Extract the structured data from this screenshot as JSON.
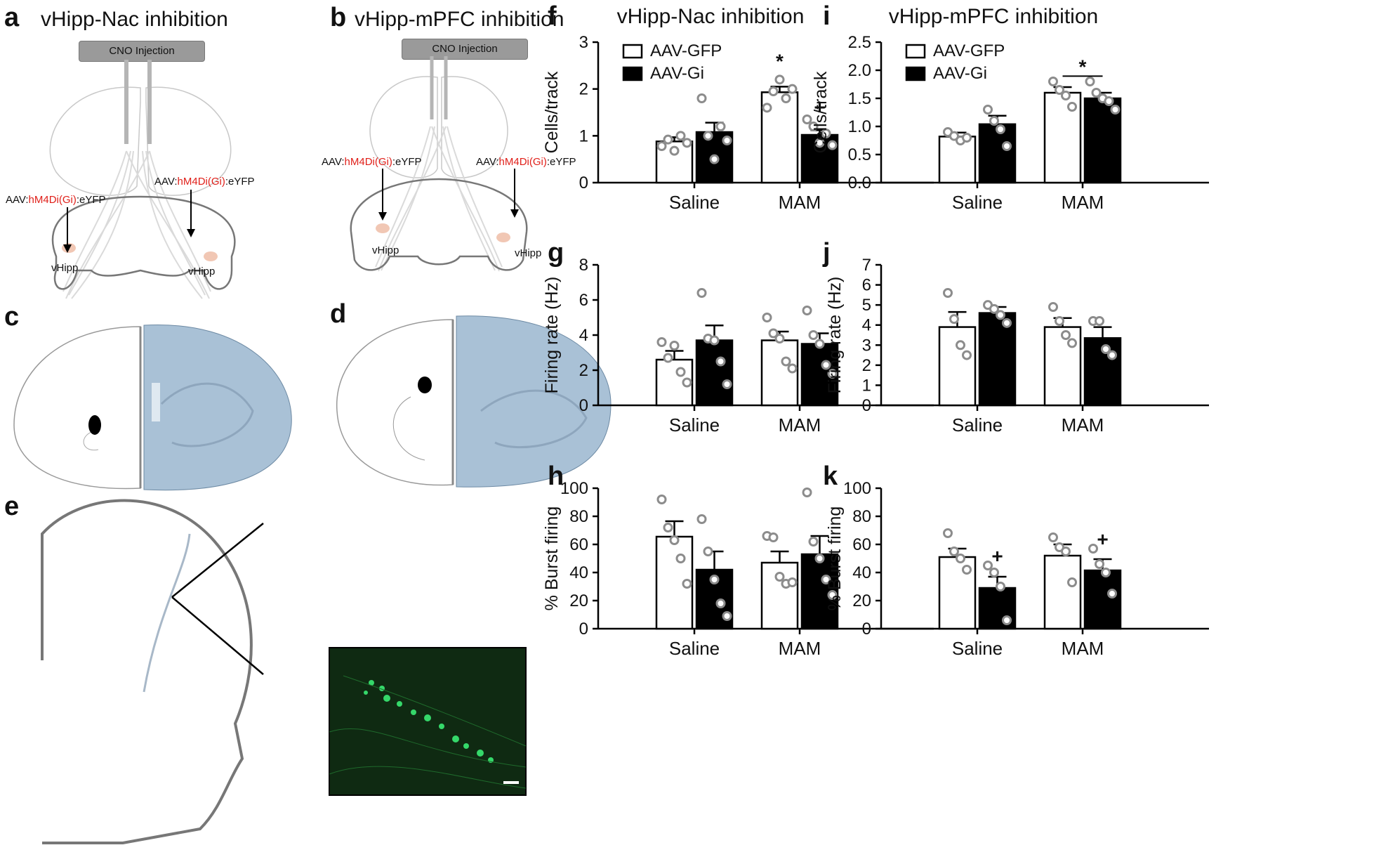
{
  "panels": {
    "a": {
      "letter": "a",
      "title": "vHipp-Nac inhibition",
      "cno": "CNO Injection",
      "aav_pre": "AAV:",
      "aav_red": "hM4Di(Gi)",
      "aav_post": ":eYFP",
      "region": "vHipp"
    },
    "b": {
      "letter": "b",
      "title": "vHipp-mPFC inhibition",
      "cno": "CNO Injection",
      "aav_pre": "AAV:",
      "aav_red": "hM4Di(Gi)",
      "aav_post": ":eYFP",
      "region": "vHipp"
    },
    "c": {
      "letter": "c"
    },
    "d": {
      "letter": "d"
    },
    "e": {
      "letter": "e"
    }
  },
  "colors": {
    "gfp_fill": "#ffffff",
    "gi_fill": "#000000",
    "dot": "#8c8c8c",
    "aav_red": "#e0201a",
    "histology": "#a9c1d6",
    "fluorescence": "#0f2a12"
  },
  "chart_data": [
    {
      "id": "f",
      "letter": "f",
      "title": "vHipp-Nac inhibition",
      "type": "bar",
      "ylabel": "Cells/track",
      "ylim": [
        0,
        3
      ],
      "ticks": [
        "0",
        "1",
        "2",
        "3"
      ],
      "categories": [
        "Saline",
        "MAM"
      ],
      "legend": [
        "AAV-GFP",
        "AAV-Gi"
      ],
      "series": [
        {
          "name": "AAV-GFP",
          "values": [
            0.88,
            1.93
          ],
          "sem": [
            0.09,
            0.12
          ],
          "points": [
            [
              0.78,
              0.92,
              0.68,
              1.0,
              0.85
            ],
            [
              1.6,
              1.95,
              2.2,
              1.8,
              2.0
            ]
          ]
        },
        {
          "name": "AAV-Gi",
          "values": [
            1.08,
            1.02
          ],
          "sem": [
            0.2,
            0.1
          ],
          "points": [
            [
              1.8,
              1.0,
              0.5,
              1.2,
              0.9
            ],
            [
              1.35,
              1.2,
              0.85,
              1.05,
              0.8
            ]
          ]
        }
      ],
      "annotations": [
        {
          "text": "*",
          "category": 1,
          "series": 0,
          "y": 2.6
        },
        {
          "text": "+",
          "category": 1,
          "series": 1,
          "y": 1.62
        }
      ]
    },
    {
      "id": "g",
      "letter": "g",
      "type": "bar",
      "ylabel": "Firing rate (Hz)",
      "ylim": [
        0,
        8
      ],
      "ticks": [
        "0",
        "2",
        "4",
        "6",
        "8"
      ],
      "categories": [
        "Saline",
        "MAM"
      ],
      "series": [
        {
          "name": "AAV-GFP",
          "values": [
            2.6,
            3.7
          ],
          "sem": [
            0.5,
            0.5
          ],
          "points": [
            [
              3.6,
              2.7,
              3.4,
              1.9,
              1.3
            ],
            [
              5.0,
              4.1,
              3.8,
              2.5,
              2.1
            ]
          ]
        },
        {
          "name": "AAV-Gi",
          "values": [
            3.7,
            3.5
          ],
          "sem": [
            0.85,
            0.6
          ],
          "points": [
            [
              6.4,
              3.8,
              3.7,
              2.5,
              1.2
            ],
            [
              5.4,
              4.0,
              3.5,
              2.3,
              1.8
            ]
          ]
        }
      ]
    },
    {
      "id": "h",
      "letter": "h",
      "type": "bar",
      "ylabel": "% Burst firing",
      "ylim": [
        0,
        100
      ],
      "ticks": [
        "0",
        "20",
        "40",
        "60",
        "80",
        "100"
      ],
      "categories": [
        "Saline",
        "MAM"
      ],
      "series": [
        {
          "name": "AAV-GFP",
          "values": [
            65.5,
            47
          ],
          "sem": [
            11,
            8
          ],
          "points": [
            [
              92,
              72,
              63,
              50,
              32
            ],
            [
              66,
              65,
              37,
              32,
              33
            ]
          ]
        },
        {
          "name": "AAV-Gi",
          "values": [
            42,
            53
          ],
          "sem": [
            13,
            13
          ],
          "points": [
            [
              78,
              55,
              35,
              18,
              9
            ],
            [
              97,
              62,
              50,
              35,
              24
            ]
          ]
        }
      ]
    },
    {
      "id": "i",
      "letter": "i",
      "title": "vHipp-mPFC inhibition",
      "type": "bar",
      "ylabel": "Cells/track",
      "ylim": [
        0,
        2.5
      ],
      "ticks": [
        "0.0",
        "0.5",
        "1.0",
        "1.5",
        "2.0",
        "2.5"
      ],
      "categories": [
        "Saline",
        "MAM"
      ],
      "legend": [
        "AAV-GFP",
        "AAV-Gi"
      ],
      "series": [
        {
          "name": "AAV-GFP",
          "values": [
            0.82,
            1.6
          ],
          "sem": [
            0.07,
            0.1
          ],
          "points": [
            [
              0.9,
              0.83,
              0.75,
              0.8
            ],
            [
              1.8,
              1.65,
              1.55,
              1.35
            ]
          ]
        },
        {
          "name": "AAV-Gi",
          "values": [
            1.04,
            1.5
          ],
          "sem": [
            0.15,
            0.1
          ],
          "points": [
            [
              1.3,
              1.1,
              0.95,
              0.65
            ],
            [
              1.8,
              1.6,
              1.5,
              1.45,
              1.3
            ]
          ]
        }
      ],
      "annotations": [
        {
          "text": "*",
          "bracket": true,
          "y": 2.12
        }
      ]
    },
    {
      "id": "j",
      "letter": "j",
      "type": "bar",
      "ylabel": "Firing rate (Hz)",
      "ylim": [
        0,
        7
      ],
      "ticks": [
        "0",
        "1",
        "2",
        "3",
        "4",
        "5",
        "6",
        "7"
      ],
      "categories": [
        "Saline",
        "MAM"
      ],
      "series": [
        {
          "name": "AAV-GFP",
          "values": [
            3.9,
            3.9
          ],
          "sem": [
            0.75,
            0.45
          ],
          "points": [
            [
              5.6,
              4.3,
              3.0,
              2.5
            ],
            [
              4.9,
              4.2,
              3.5,
              3.1
            ]
          ]
        },
        {
          "name": "AAV-Gi",
          "values": [
            4.6,
            3.35
          ],
          "sem": [
            0.3,
            0.55
          ],
          "points": [
            [
              5.0,
              4.8,
              4.5,
              4.1
            ],
            [
              4.2,
              4.2,
              2.8,
              2.5
            ]
          ]
        }
      ]
    },
    {
      "id": "k",
      "letter": "k",
      "type": "bar",
      "ylabel": "% Burst firing",
      "ylim": [
        0,
        100
      ],
      "ticks": [
        "0",
        "20",
        "40",
        "60",
        "80",
        "100"
      ],
      "categories": [
        "Saline",
        "MAM"
      ],
      "series": [
        {
          "name": "AAV-GFP",
          "values": [
            51,
            52
          ],
          "sem": [
            6,
            8
          ],
          "points": [
            [
              68,
              55,
              50,
              42
            ],
            [
              65,
              58,
              55,
              33
            ]
          ]
        },
        {
          "name": "AAV-Gi",
          "values": [
            29,
            41.5
          ],
          "sem": [
            8,
            8
          ],
          "points": [
            [
              45,
              40,
              30,
              6
            ],
            [
              57,
              46,
              40,
              25
            ]
          ]
        }
      ],
      "annotations": [
        {
          "text": "+",
          "category": 0,
          "series": 1,
          "y": 52
        },
        {
          "text": "+",
          "category": 1,
          "series": 1,
          "y": 64
        }
      ]
    }
  ]
}
